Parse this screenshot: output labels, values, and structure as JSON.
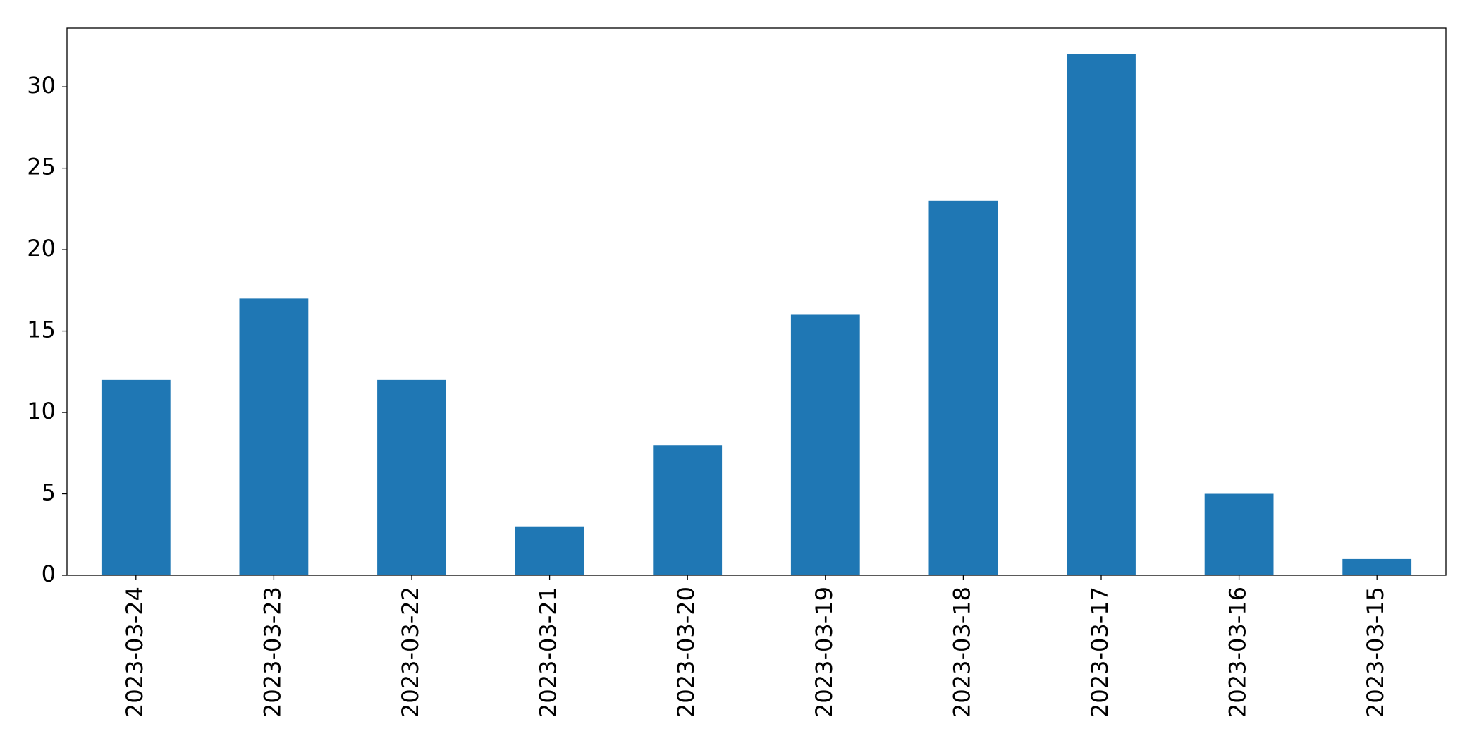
{
  "chart_data": {
    "type": "bar",
    "categories": [
      "2023-03-24",
      "2023-03-23",
      "2023-03-22",
      "2023-03-21",
      "2023-03-20",
      "2023-03-19",
      "2023-03-18",
      "2023-03-17",
      "2023-03-16",
      "2023-03-15"
    ],
    "values": [
      12,
      17,
      12,
      3,
      8,
      16,
      23,
      32,
      5,
      1
    ],
    "color": "#1f77b4",
    "ylim": [
      0,
      33.6
    ],
    "yticks": [
      0,
      5,
      10,
      15,
      20,
      25,
      30
    ],
    "grid": false
  }
}
